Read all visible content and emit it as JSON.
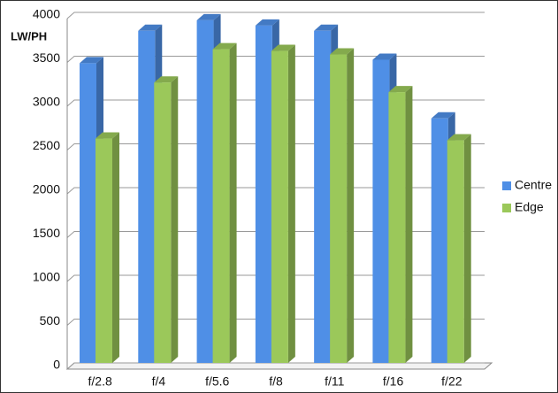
{
  "chart_data": {
    "type": "bar3d",
    "y_label": "LW/PH",
    "categories": [
      "f/2.8",
      "f/4",
      "f/5.6",
      "f/8",
      "f/11",
      "f/16",
      "f/22"
    ],
    "series": [
      {
        "name": "Centre",
        "color": "#4f8fe6",
        "values": [
          3420,
          3790,
          3910,
          3850,
          3790,
          3460,
          2790
        ]
      },
      {
        "name": "Edge",
        "color": "#9bc85a",
        "values": [
          2560,
          3200,
          3580,
          3560,
          3520,
          3090,
          2540
        ]
      }
    ],
    "ylim": [
      0,
      4000
    ],
    "yticks": [
      0,
      500,
      1000,
      1500,
      2000,
      2500,
      3000,
      3500,
      4000
    ],
    "grid": true,
    "legend": "right"
  }
}
